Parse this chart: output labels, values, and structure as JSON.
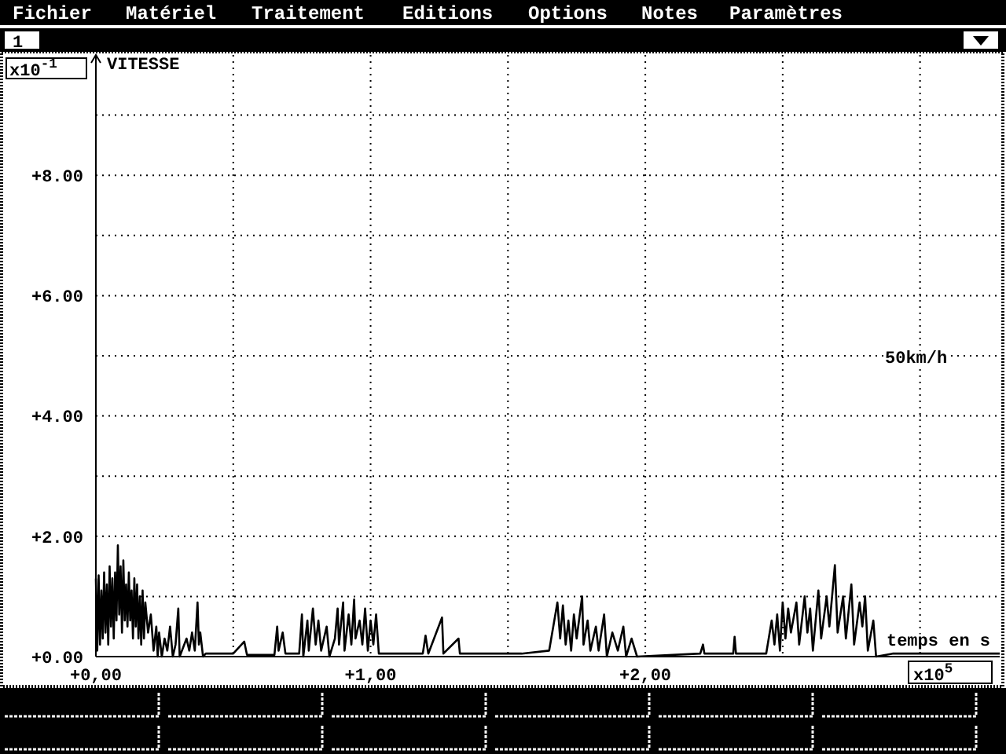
{
  "chart_data": {
    "type": "line",
    "ylabel": "VITESSE",
    "xlabel": "temps en s",
    "annotations": [
      "Fichier",
      "Matériel",
      "Traitement",
      "Editions",
      "Options",
      "Notes",
      "Paramètres",
      "1",
      "x10$^{-1}$",
      "x10$^{5}$",
      "50km/h"
    ],
    "xlim": [
      0,
      3.29
    ],
    "ylim": [
      0,
      10
    ],
    "xticks": [
      {
        "value": 0,
        "label": "+0,00"
      },
      {
        "value": 0.5,
        "label": null
      },
      {
        "value": 1,
        "label": "+1,00"
      },
      {
        "value": 1.5,
        "label": null
      },
      {
        "value": 2,
        "label": "+2,00"
      },
      {
        "value": 2.5,
        "label": null
      },
      {
        "value": 3,
        "label": null
      }
    ],
    "yticks": [
      {
        "value": 0,
        "label": "+0.00"
      },
      {
        "value": 1,
        "label": null
      },
      {
        "value": 2,
        "label": "+2.00"
      },
      {
        "value": 3,
        "label": null
      },
      {
        "value": 4,
        "label": "+4.00"
      },
      {
        "value": 5,
        "label": null
      },
      {
        "value": 6,
        "label": "+6.00"
      },
      {
        "value": 7,
        "label": null
      },
      {
        "value": 8,
        "label": "+8.00"
      },
      {
        "value": 9,
        "label": null
      }
    ],
    "grid": true,
    "series": [
      {
        "color": "#000000",
        "x": [
          0,
          0.005,
          0.01,
          0.015,
          0.02,
          0.025,
          0.03,
          0.035,
          0.04,
          0.045,
          0.05,
          0.055,
          0.06,
          0.065,
          0.07,
          0.075,
          0.08,
          0.085,
          0.09,
          0.095,
          0.1,
          0.105,
          0.11,
          0.115,
          0.12,
          0.125,
          0.13,
          0.135,
          0.14,
          0.145,
          0.15,
          0.155,
          0.16,
          0.165,
          0.17,
          0.175,
          0.18,
          0.19,
          0.2,
          0.21,
          0.22,
          0.225,
          0.23,
          0.24,
          0.25,
          0.26,
          0.27,
          0.28,
          0.29,
          0.3,
          0.305,
          0.33,
          0.34,
          0.35,
          0.36,
          0.37,
          0.375,
          0.38,
          0.39,
          0.4,
          0.5,
          0.54,
          0.55,
          0.65,
          0.66,
          0.665,
          0.68,
          0.69,
          0.74,
          0.75,
          0.755,
          0.77,
          0.775,
          0.79,
          0.8,
          0.81,
          0.82,
          0.84,
          0.85,
          0.87,
          0.88,
          0.885,
          0.9,
          0.905,
          0.92,
          0.93,
          0.94,
          0.945,
          0.96,
          0.97,
          0.98,
          0.99,
          1.0,
          1.01,
          1.02,
          1.03,
          1.1,
          1.19,
          1.2,
          1.21,
          1.26,
          1.265,
          1.32,
          1.325,
          1.55,
          1.65,
          1.68,
          1.69,
          1.7,
          1.71,
          1.72,
          1.73,
          1.74,
          1.75,
          1.77,
          1.775,
          1.79,
          1.8,
          1.82,
          1.83,
          1.85,
          1.86,
          1.88,
          1.9,
          1.92,
          1.93,
          1.95,
          1.97,
          2.2,
          2.21,
          2.215,
          2.32,
          2.325,
          2.33,
          2.44,
          2.46,
          2.47,
          2.48,
          2.49,
          2.5,
          2.51,
          2.52,
          2.53,
          2.55,
          2.56,
          2.58,
          2.59,
          2.6,
          2.61,
          2.63,
          2.64,
          2.66,
          2.67,
          2.69,
          2.7,
          2.72,
          2.73,
          2.75,
          2.76,
          2.78,
          2.79,
          2.8,
          2.81,
          2.83,
          2.84,
          2.9,
          3.29
        ],
        "values": [
          1.3,
          0.1,
          1.35,
          0.2,
          1.1,
          0.3,
          1.4,
          0.4,
          1.2,
          0.2,
          1.5,
          0.5,
          1.3,
          0.3,
          1.4,
          0.6,
          1.85,
          0.7,
          1.5,
          0.4,
          1.6,
          0.6,
          1.2,
          0.5,
          1.4,
          0.6,
          1.1,
          0.3,
          1.3,
          0.5,
          1.2,
          0.3,
          1.0,
          0.2,
          1.1,
          0.3,
          0.9,
          0.4,
          0.7,
          0.1,
          0.5,
          0,
          0.4,
          0,
          0.3,
          0.1,
          0.5,
          0,
          0.2,
          0.8,
          0,
          0.3,
          0.1,
          0.4,
          0.1,
          0.9,
          0.2,
          0.4,
          0,
          0.05,
          0.05,
          0.25,
          0.03,
          0.03,
          0.5,
          0.1,
          0.4,
          0.05,
          0.05,
          0.7,
          0,
          0.6,
          0.1,
          0.8,
          0.2,
          0.6,
          0.1,
          0.5,
          0,
          0.3,
          0.8,
          0.2,
          0.9,
          0.1,
          0.7,
          0.2,
          0.95,
          0.3,
          0.6,
          0.2,
          0.8,
          0.1,
          0.6,
          0.2,
          0.7,
          0.05,
          0.05,
          0.05,
          0.35,
          0.05,
          0.65,
          0.05,
          0.3,
          0.05,
          0.05,
          0.1,
          0.9,
          0.3,
          0.85,
          0.2,
          0.6,
          0.1,
          0.7,
          0.3,
          1.0,
          0.2,
          0.6,
          0.1,
          0.5,
          0.1,
          0.7,
          0,
          0.4,
          0.1,
          0.5,
          0,
          0.3,
          0,
          0.05,
          0.2,
          0.05,
          0.05,
          0.33,
          0.05,
          0.05,
          0.6,
          0.2,
          0.7,
          0.1,
          0.9,
          0.3,
          0.8,
          0.4,
          0.9,
          0.2,
          1.0,
          0.4,
          0.8,
          0.1,
          1.1,
          0.3,
          1.0,
          0.5,
          1.52,
          0.4,
          1.0,
          0.3,
          1.2,
          0.2,
          0.9,
          0.5,
          1.0,
          0.1,
          0.6,
          0,
          0.05,
          0.05
        ]
      }
    ]
  }
}
